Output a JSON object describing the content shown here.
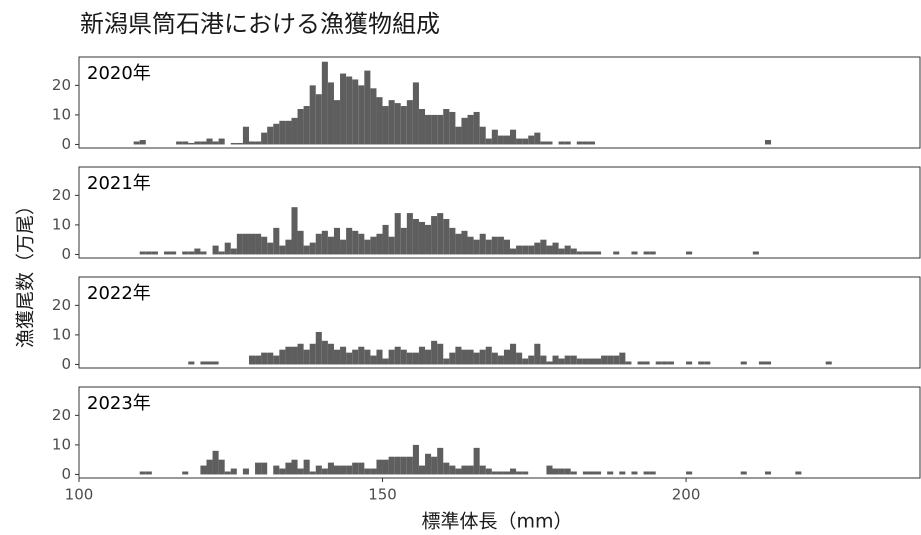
{
  "chart_data": {
    "type": "histogram",
    "title": "新潟県筒石港における漁獲物組成",
    "x_label": "標準体長（mm）",
    "y_label": "漁獲尾数（万尾）",
    "xlim": [
      100,
      238.7
    ],
    "xticks": [
      100,
      150,
      200
    ],
    "ylim": [
      -1.2,
      29.6
    ],
    "yticks": [
      0,
      10,
      20
    ],
    "color": "#5e5e5e",
    "grid": false,
    "bins": [
      105,
      106,
      107,
      108,
      109,
      110,
      111,
      112,
      113,
      114,
      115,
      116,
      117,
      118,
      119,
      120,
      121,
      122,
      123,
      124,
      125,
      126,
      127,
      128,
      129,
      130,
      131,
      132,
      133,
      134,
      135,
      136,
      137,
      138,
      139,
      140,
      141,
      142,
      143,
      144,
      145,
      146,
      147,
      148,
      149,
      150,
      151,
      152,
      153,
      154,
      155,
      156,
      157,
      158,
      159,
      160,
      161,
      162,
      163,
      164,
      165,
      166,
      167,
      168,
      169,
      170,
      171,
      172,
      173,
      174,
      175,
      176,
      177,
      178,
      179,
      180,
      181,
      182,
      183,
      184,
      185,
      186,
      187,
      188,
      189,
      190,
      191,
      192,
      193,
      194,
      195,
      196,
      197,
      198,
      199,
      200,
      201,
      202,
      203,
      204,
      205,
      206,
      207,
      208,
      209,
      210,
      211,
      212,
      213,
      214,
      215,
      216,
      217,
      218,
      219,
      220,
      221,
      222,
      223,
      224,
      225,
      226
    ],
    "series": [
      {
        "name": "2020年",
        "values": [
          0,
          0,
          0,
          0,
          1,
          1.5,
          0,
          0,
          0,
          0,
          0,
          1,
          1,
          0.5,
          1,
          1,
          2,
          1,
          2,
          0,
          0.5,
          0.5,
          6,
          1,
          1,
          4,
          6,
          7,
          8,
          8,
          9,
          12,
          13,
          20,
          17,
          28,
          21,
          15,
          24,
          23,
          22,
          20,
          25,
          19,
          16,
          13,
          15,
          14,
          13,
          15,
          21,
          12,
          10,
          10,
          10,
          12,
          11,
          6,
          9,
          10,
          11,
          6,
          2,
          5,
          3,
          3,
          5,
          2,
          2,
          3,
          4,
          1,
          1,
          0,
          1,
          1,
          0,
          1,
          1,
          1,
          0,
          0,
          0,
          0,
          0,
          0,
          0,
          0,
          0,
          0,
          0,
          0,
          0,
          0,
          0,
          0,
          0,
          0,
          0,
          0,
          0,
          0,
          0,
          0,
          0,
          0,
          0,
          0,
          1.5,
          0,
          0,
          0,
          0,
          0,
          0,
          0,
          0,
          0,
          0,
          0,
          0
        ]
      },
      {
        "name": "2021年",
        "values": [
          0,
          0,
          0,
          0,
          0,
          1,
          1,
          1,
          0,
          1,
          1,
          0,
          1,
          1,
          2,
          1,
          0,
          3,
          1,
          4,
          2,
          7,
          7,
          7,
          7,
          6,
          4,
          9,
          3,
          5,
          16,
          8,
          3,
          4,
          7,
          8,
          6,
          9,
          5,
          9,
          8,
          7,
          5,
          6,
          7,
          10,
          6,
          14,
          9,
          14,
          12,
          11,
          10,
          13,
          14,
          12,
          9,
          7,
          8,
          6,
          5,
          7,
          5,
          6,
          6,
          5,
          2,
          3,
          3,
          3,
          4,
          5,
          3,
          4,
          2,
          3,
          2,
          1,
          1,
          1,
          1,
          0,
          0,
          1,
          0,
          0,
          1,
          0,
          1,
          1,
          0,
          0,
          0,
          0,
          0,
          1,
          0,
          0,
          0,
          0,
          0,
          0,
          0,
          0,
          0,
          0,
          1,
          0,
          0,
          0,
          0,
          0,
          0,
          0,
          0,
          0,
          0,
          0,
          0,
          0,
          0
        ]
      },
      {
        "name": "2022年",
        "values": [
          0,
          0,
          0,
          0,
          0,
          0,
          0,
          0,
          0,
          0,
          0,
          0,
          0,
          1,
          0,
          1,
          1,
          1,
          0,
          0,
          0,
          0,
          0,
          3,
          3,
          4,
          4,
          3,
          5,
          6,
          6,
          7,
          5,
          7,
          11,
          8,
          7,
          5,
          6,
          4,
          5,
          6,
          5,
          3,
          5,
          2,
          5,
          6,
          5,
          4,
          4,
          6,
          5,
          8,
          7,
          2,
          4,
          6,
          5,
          5,
          4,
          5,
          6,
          4,
          3,
          5,
          7,
          4,
          2,
          3,
          7,
          3,
          1,
          3,
          2,
          3,
          3,
          2,
          2,
          2,
          2,
          3,
          3,
          3,
          4,
          1,
          0,
          1,
          1,
          0,
          1,
          1,
          1,
          0,
          0,
          1,
          0,
          1,
          1,
          0,
          0,
          0,
          0,
          0,
          1,
          0,
          0,
          1,
          1,
          0,
          0,
          0,
          0,
          0,
          0,
          0,
          0,
          0,
          1,
          0,
          0
        ]
      },
      {
        "name": "2023年",
        "values": [
          0,
          0,
          0,
          0,
          0,
          1,
          1,
          0,
          0,
          0,
          0,
          0,
          1,
          0,
          0,
          3,
          5,
          8,
          5,
          1,
          2,
          0,
          2,
          0,
          4,
          4,
          0,
          3,
          2,
          4,
          5,
          2,
          5,
          1,
          3,
          2,
          4,
          3,
          3,
          3,
          4,
          4,
          2,
          2,
          5,
          5,
          6,
          6,
          6,
          6,
          10,
          3,
          7,
          6,
          9,
          4,
          3,
          2,
          3,
          3,
          9,
          3,
          2,
          1,
          1,
          1,
          2,
          1,
          1,
          0,
          0,
          0,
          3,
          2,
          2,
          2,
          1,
          0,
          1,
          1,
          1,
          0,
          1,
          0,
          1,
          0,
          1,
          0,
          1,
          1,
          0,
          0,
          0,
          0,
          0,
          1,
          0,
          0,
          0,
          0,
          0,
          0,
          0,
          0,
          1,
          0,
          0,
          0,
          1,
          0,
          0,
          0,
          0,
          1,
          0,
          0,
          0,
          0,
          0,
          0,
          0
        ]
      }
    ]
  }
}
